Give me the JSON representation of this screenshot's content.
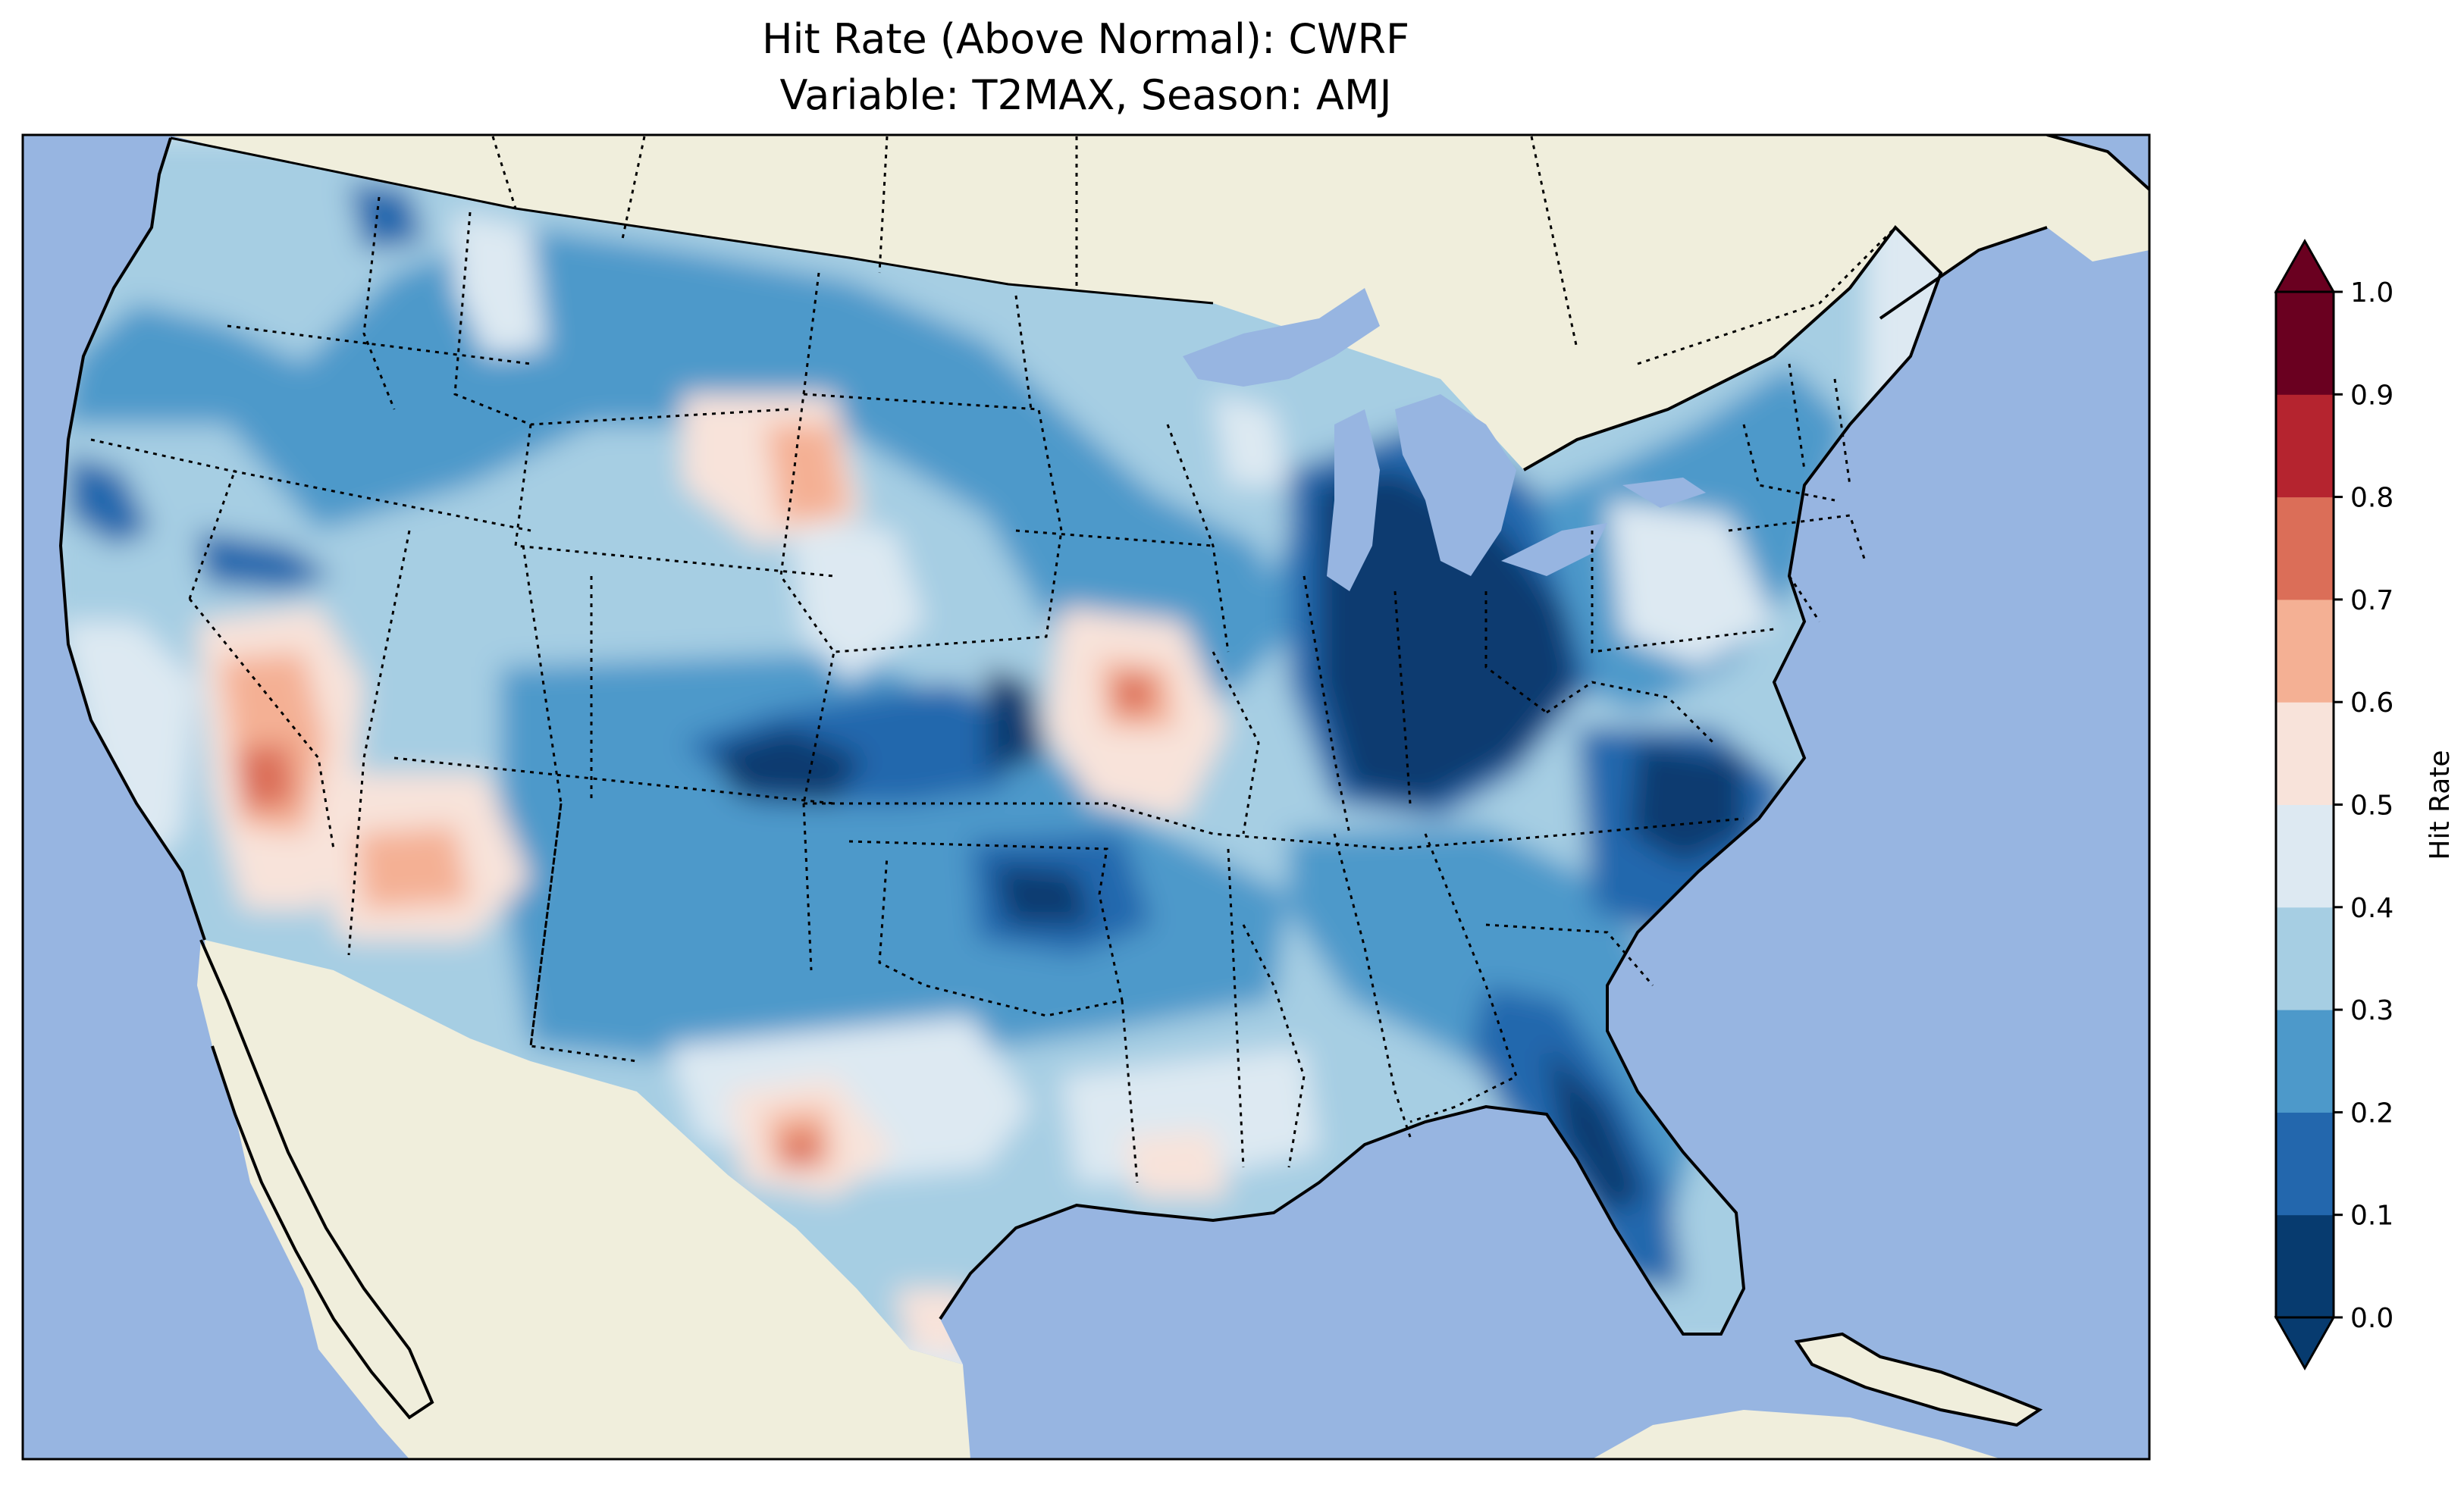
{
  "figure": {
    "title_line1": "Hit Rate (Above Normal): CWRF",
    "title_line2": "Variable: T2MAX, Season: AMJ"
  },
  "map": {
    "region": "Contiguous United States",
    "ocean_color": "#97b5e1",
    "land_color": "#f0eedc"
  },
  "colorbar": {
    "label": "Hit Rate",
    "ticks": [
      "0.0",
      "0.1",
      "0.2",
      "0.3",
      "0.4",
      "0.5",
      "0.6",
      "0.7",
      "0.8",
      "0.9",
      "1.0"
    ],
    "colors": [
      "#073b6f",
      "#2367ad",
      "#4d99ca",
      "#a6cee3",
      "#dde9f2",
      "#f8e3da",
      "#f4b094",
      "#db6e58",
      "#b5242f",
      "#6a0020"
    ],
    "extend": "both"
  }
}
